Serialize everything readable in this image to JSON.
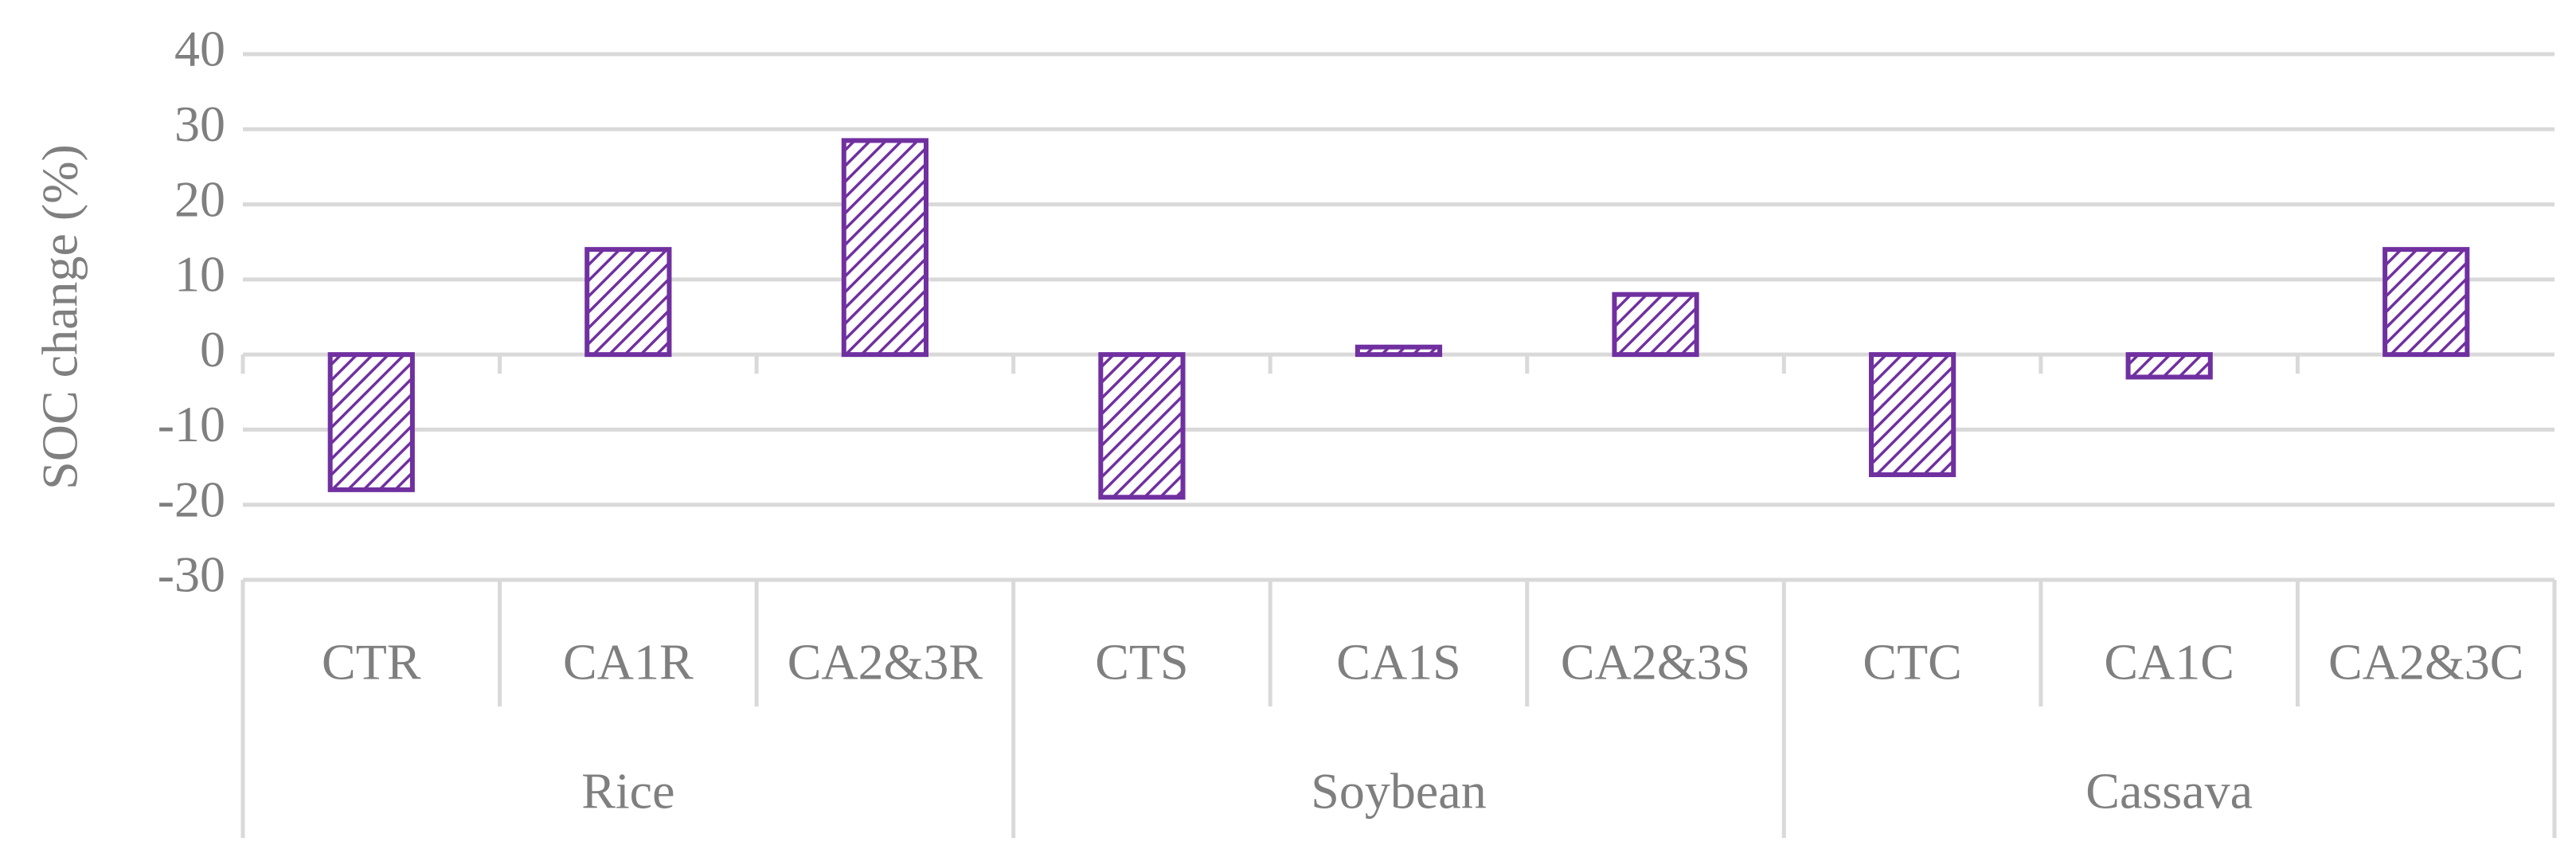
{
  "chart_data": {
    "type": "bar",
    "ylabel": "SOC change (%)",
    "groups": [
      {
        "name": "Rice",
        "categories": [
          "CTR",
          "CA1R",
          "CA2&3R"
        ],
        "values": [
          -18,
          14,
          28.5
        ]
      },
      {
        "name": "Soybean",
        "categories": [
          "CTS",
          "CA1S",
          "CA2&3S"
        ],
        "values": [
          -19,
          1,
          8
        ]
      },
      {
        "name": "Cassava",
        "categories": [
          "CTC",
          "CA1C",
          "CA2&3C"
        ],
        "values": [
          -16,
          -3,
          14
        ]
      }
    ],
    "color": "#7030a0",
    "ylim": [
      -30,
      40
    ],
    "yticks": [
      -30,
      -20,
      -10,
      0,
      10,
      20,
      30,
      40
    ],
    "grid": true
  }
}
